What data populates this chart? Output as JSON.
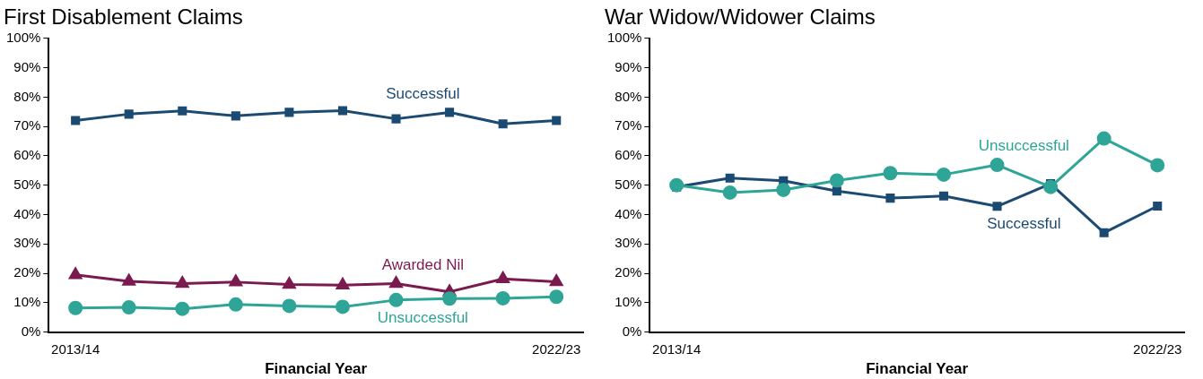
{
  "chart_data": [
    {
      "type": "line",
      "title": "First Disablement Claims",
      "xlabel": "Financial Year",
      "categories": [
        "2013/14",
        null,
        null,
        null,
        null,
        null,
        null,
        null,
        null,
        "2022/23"
      ],
      "ylim": [
        0,
        100
      ],
      "yticks": [
        {
          "value": 0,
          "label": "0%"
        },
        {
          "value": 10,
          "label": "10%"
        },
        {
          "value": 20,
          "label": "20%"
        },
        {
          "value": 30,
          "label": "30%"
        },
        {
          "value": 40,
          "label": "40%"
        },
        {
          "value": 50,
          "label": "50%"
        },
        {
          "value": 60,
          "label": "60%"
        },
        {
          "value": 70,
          "label": "70%"
        },
        {
          "value": 80,
          "label": "80%"
        },
        {
          "value": 90,
          "label": "90%"
        },
        {
          "value": 100,
          "label": "100%"
        }
      ],
      "grid": false,
      "legend": false,
      "series": [
        {
          "name": "Successful",
          "color": "#1b4a72",
          "marker": "square",
          "values": [
            72,
            74.2,
            75.3,
            73.6,
            74.8,
            75.4,
            72.6,
            74.8,
            70.9,
            72
          ]
        },
        {
          "name": "Awarded Nil",
          "color": "#7b1a4f",
          "marker": "triangle",
          "values": [
            19.5,
            17.3,
            16.5,
            17,
            16.2,
            16,
            16.5,
            13.7,
            18.1,
            17.1
          ]
        },
        {
          "name": "Unsuccessful",
          "color": "#2ea597",
          "marker": "circle",
          "values": [
            8.2,
            8.4,
            7.9,
            9.4,
            8.9,
            8.6,
            10.9,
            11.4,
            11.5,
            12
          ]
        }
      ]
    },
    {
      "type": "line",
      "title": "War Widow/Widower Claims",
      "xlabel": "Financial Year",
      "categories": [
        "2013/14",
        null,
        null,
        null,
        null,
        null,
        null,
        null,
        null,
        "2022/23"
      ],
      "ylim": [
        0,
        100
      ],
      "yticks": [
        {
          "value": 0,
          "label": "0%"
        },
        {
          "value": 10,
          "label": "10%"
        },
        {
          "value": 20,
          "label": "20%"
        },
        {
          "value": 30,
          "label": "30%"
        },
        {
          "value": 40,
          "label": "40%"
        },
        {
          "value": 50,
          "label": "50%"
        },
        {
          "value": 60,
          "label": "60%"
        },
        {
          "value": 70,
          "label": "70%"
        },
        {
          "value": 80,
          "label": "80%"
        },
        {
          "value": 90,
          "label": "90%"
        },
        {
          "value": 100,
          "label": "100%"
        }
      ],
      "grid": false,
      "legend": false,
      "series": [
        {
          "name": "Successful",
          "color": "#1b4a72",
          "marker": "square",
          "values": [
            49.4,
            52.4,
            51.5,
            48,
            45.6,
            46.3,
            42.8,
            50.5,
            33.8,
            42.9
          ]
        },
        {
          "name": "Unsuccessful",
          "color": "#2ea597",
          "marker": "circle",
          "values": [
            50,
            47.5,
            48.4,
            51.6,
            54.1,
            53.6,
            56.9,
            49.4,
            65.9,
            56.8
          ]
        }
      ]
    }
  ]
}
